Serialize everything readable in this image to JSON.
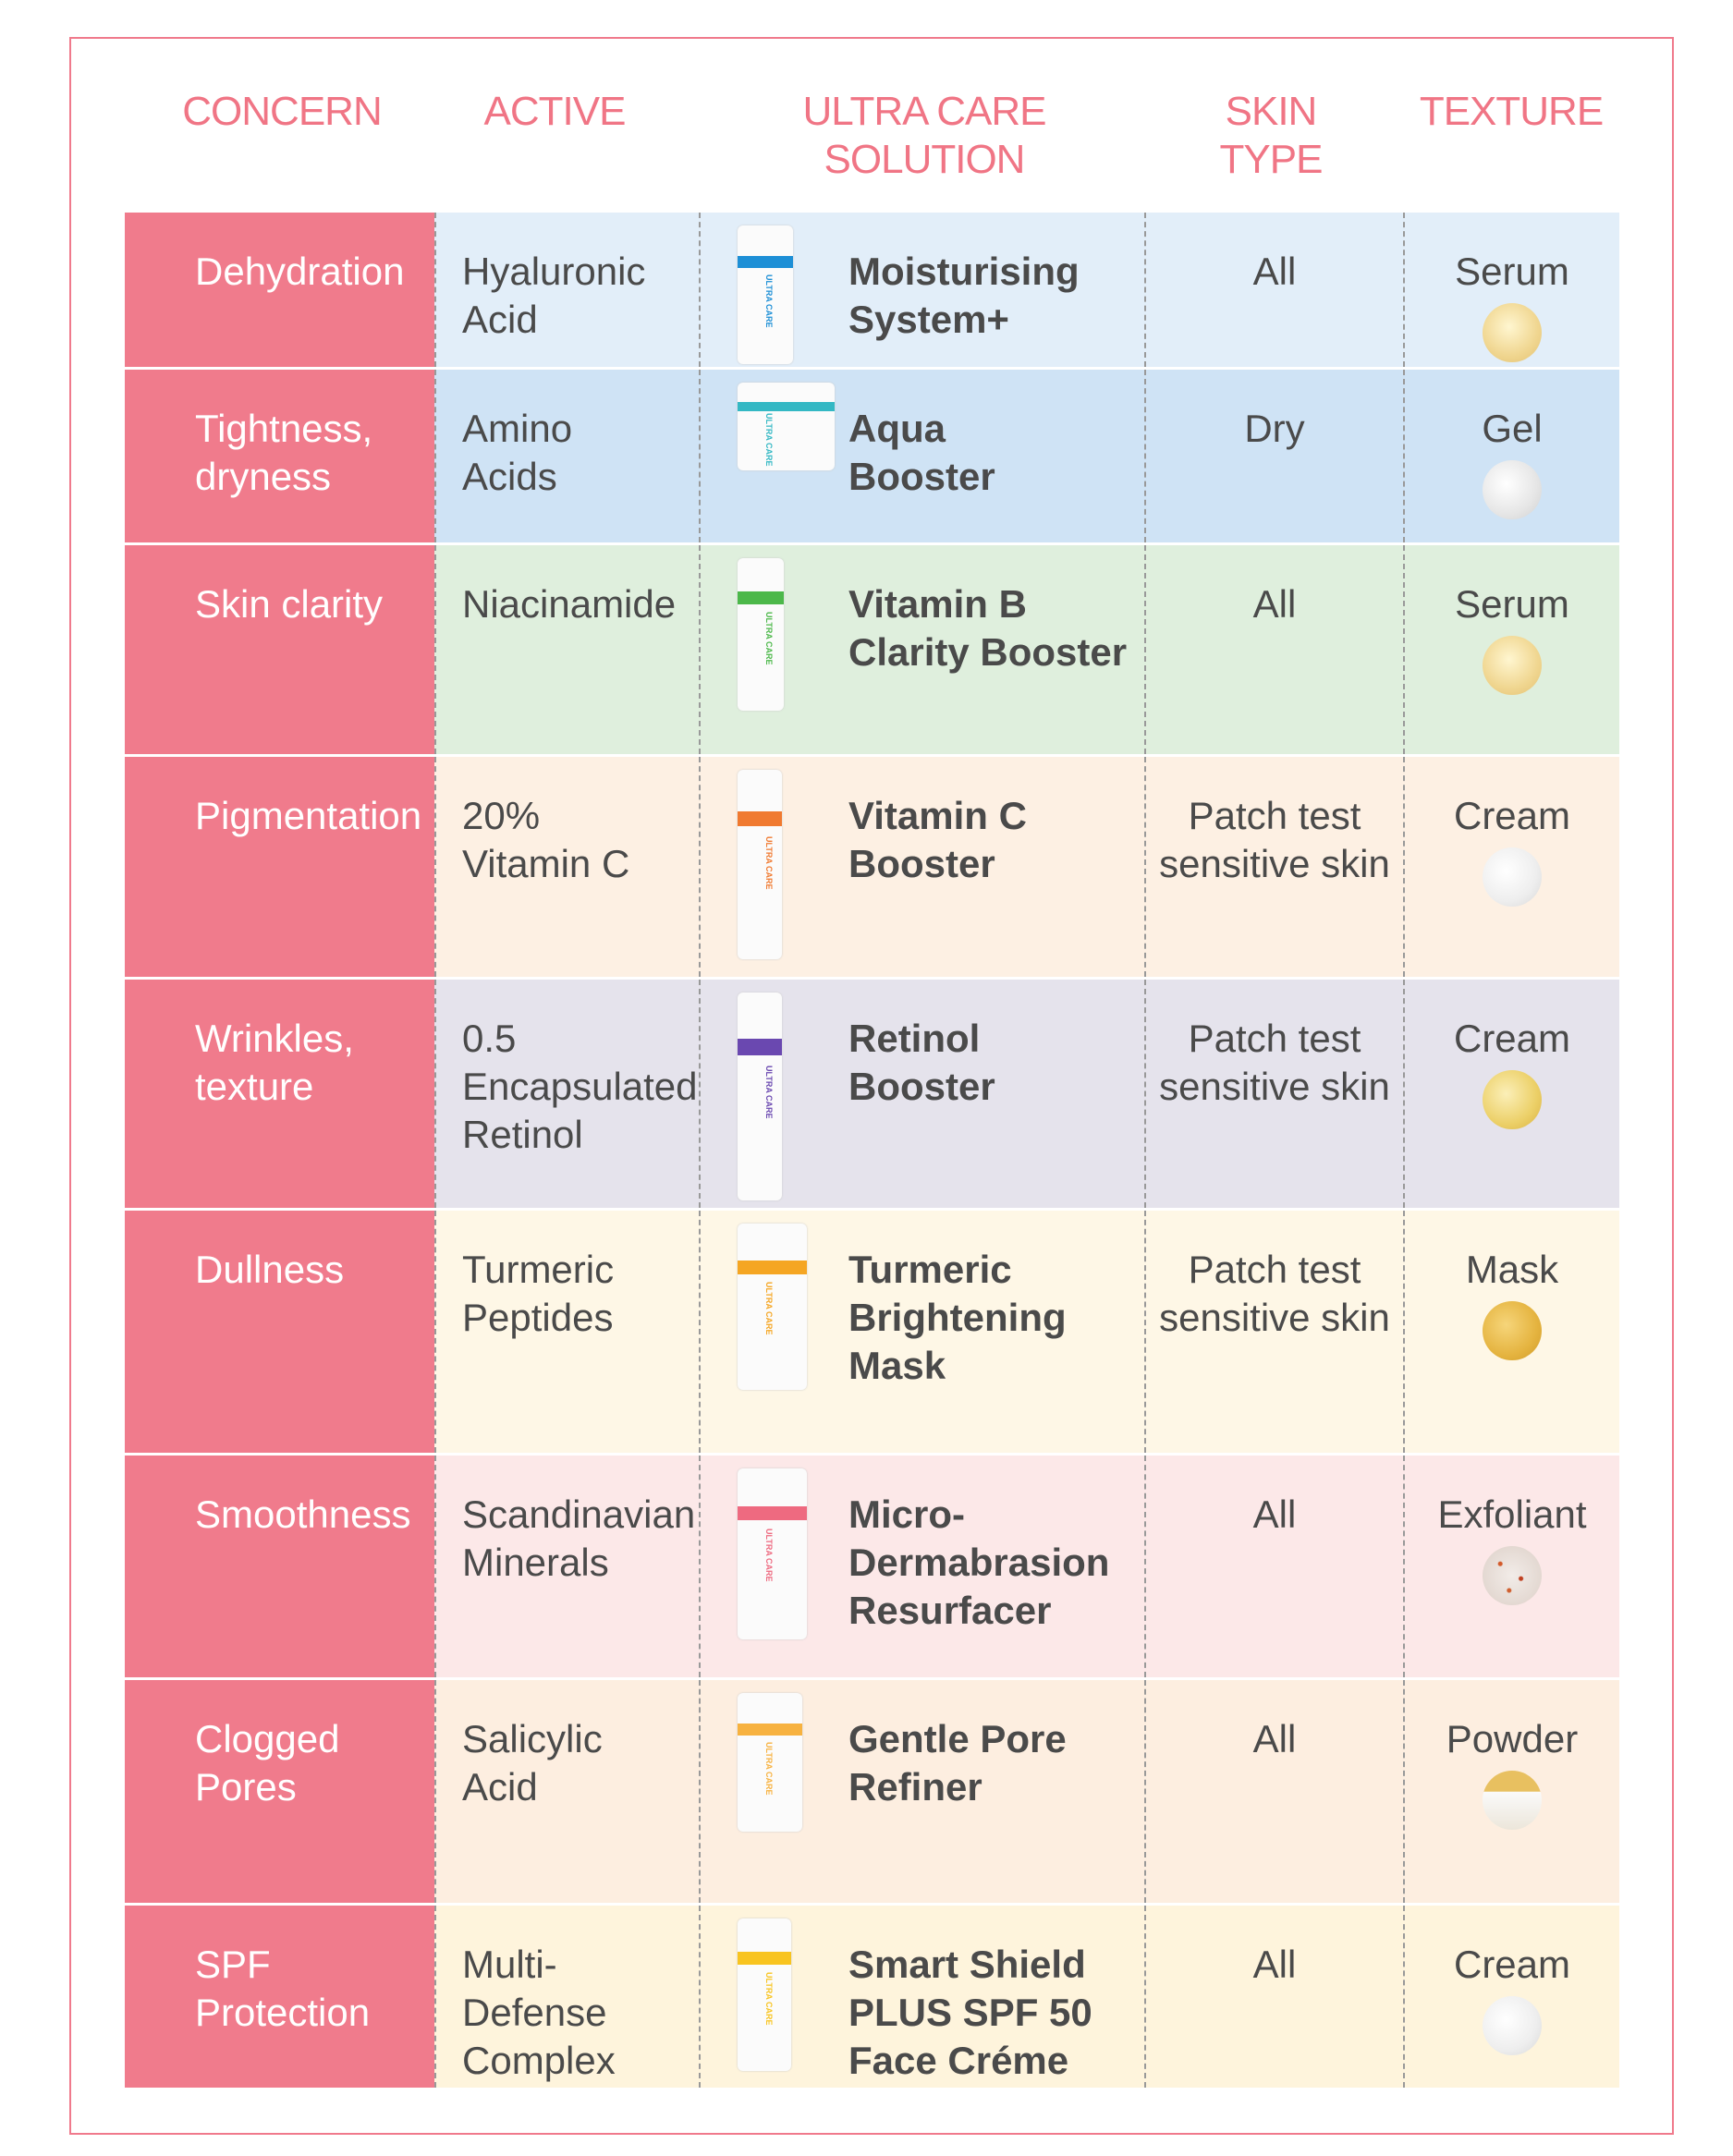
{
  "headers": {
    "concern": "CONCERN",
    "active": "ACTIVE",
    "solution": [
      "ULTRA CARE",
      "SOLUTION"
    ],
    "skin_type": [
      "SKIN",
      "TYPE"
    ],
    "texture": "TEXTURE"
  },
  "colors": {
    "accent": "#f07b8c",
    "header_text": "#f07585",
    "body_text": "#4a4a4a"
  },
  "rows": [
    {
      "concern": [
        "Dehydration"
      ],
      "active": [
        "Hyaluronic",
        "Acid"
      ],
      "product": [
        "Moisturising",
        "System+"
      ],
      "skin": [
        "All"
      ],
      "texture": "Serum",
      "bg": "#e2eef9",
      "prod_color": "#1d8fd6",
      "swatch": "radial-gradient(circle at 45% 40%,#fff6d0,#f0d690 60%,#e3c070)"
    },
    {
      "concern": [
        "Tightness,",
        "dryness"
      ],
      "active": [
        "Amino",
        "Acids"
      ],
      "product": [
        "Aqua",
        "Booster"
      ],
      "skin": [
        "Dry"
      ],
      "texture": "Gel",
      "bg": "#cfe3f5",
      "prod_color": "#34b8c4",
      "swatch": "radial-gradient(circle at 40% 40%,#ffffff,#e6e6e6 60%,#cfcfcf)"
    },
    {
      "concern": [
        "Skin clarity"
      ],
      "active": [
        "Niacinamide"
      ],
      "product": [
        "Vitamin B",
        "Clarity Booster"
      ],
      "skin": [
        "All"
      ],
      "texture": "Serum",
      "bg": "#dfefdd",
      "prod_color": "#4cb84a",
      "swatch": "radial-gradient(circle at 45% 40%,#fff6d0,#f0d690 60%,#e3c070)"
    },
    {
      "concern": [
        "Pigmentation"
      ],
      "active": [
        "20%",
        "Vitamin C"
      ],
      "product": [
        "Vitamin C",
        "Booster"
      ],
      "skin": [
        "Patch test",
        "sensitive skin"
      ],
      "texture": "Cream",
      "bg": "#fdf0e3",
      "prod_color": "#f07a30",
      "swatch": "radial-gradient(circle at 40% 40%,#ffffff,#eeeeee 60%,#d6d6d6)"
    },
    {
      "concern": [
        "Wrinkles,",
        "texture"
      ],
      "active": [
        "0.5",
        "Encapsulated",
        "Retinol"
      ],
      "product": [
        "Retinol",
        "Booster"
      ],
      "skin": [
        "Patch test",
        "sensitive skin"
      ],
      "texture": "Cream",
      "bg": "#e5e3ec",
      "prod_color": "#6a48b0",
      "swatch": "radial-gradient(circle at 40% 40%,#fbefb8,#ecd068 60%,#d8b040)"
    },
    {
      "concern": [
        "Dullness"
      ],
      "active": [
        "Turmeric",
        "Peptides"
      ],
      "product": [
        "Turmeric",
        "Brightening",
        "Mask"
      ],
      "skin": [
        "Patch test",
        "sensitive skin"
      ],
      "texture": "Mask",
      "bg": "#fef7e6",
      "prod_color": "#f5a623",
      "swatch": "radial-gradient(circle at 40% 40%,#f6d57a,#e5b440 60%,#d09a28)"
    },
    {
      "concern": [
        "Smoothness"
      ],
      "active": [
        "Scandinavian",
        "Minerals"
      ],
      "product": [
        "Micro-",
        "Dermabrasion",
        "Resurfacer"
      ],
      "skin": [
        "All"
      ],
      "texture": "Exfoliant",
      "bg": "#fce8e8",
      "prod_color": "#ee6a80",
      "swatch": "radial-gradient(circle at 30% 30%,#d35a2a 2px,transparent 3px),radial-gradient(circle at 65% 55%,#c04020 2px,transparent 3px),radial-gradient(circle at 45% 75%,#d06030 2px,transparent 3px),radial-gradient(circle,#f2ece8,#ddd0c8)"
    },
    {
      "concern": [
        "Clogged",
        "Pores"
      ],
      "active": [
        "Salicylic",
        "Acid"
      ],
      "product": [
        "Gentle Pore",
        "Refiner"
      ],
      "skin": [
        "All"
      ],
      "texture": "Powder",
      "bg": "#fdeee0",
      "prod_color": "#f7b240",
      "swatch": "linear-gradient(#e8c060 35%,#fafafa 36%,#ece6da)"
    },
    {
      "concern": [
        "SPF",
        "Protection"
      ],
      "active": [
        "Multi-Defense",
        "Complex"
      ],
      "product": [
        "Smart Shield",
        "PLUS SPF 50",
        "Face Créme"
      ],
      "skin": [
        "All"
      ],
      "texture": "Cream",
      "bg": "#fef4dc",
      "prod_color": "#f8c420",
      "swatch": "radial-gradient(circle at 40% 40%,#ffffff,#eeeeee 60%,#d6d6d6)"
    }
  ],
  "product_label": "ULTRA CARE"
}
